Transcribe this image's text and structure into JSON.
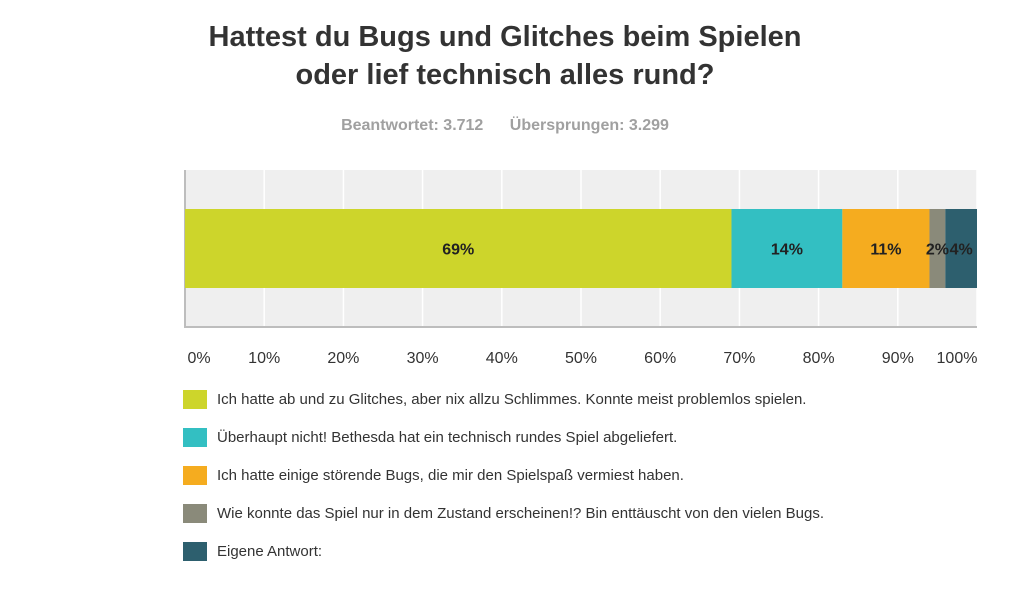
{
  "chart_data": {
    "type": "bar",
    "orientation": "horizontal-stacked",
    "title_lines": [
      "Hattest du Bugs und Glitches beim Spielen",
      "oder lief technisch alles rund?"
    ],
    "answered": "Beantwortet: 3.712",
    "skipped": "Übersprungen: 3.299",
    "xlim": [
      0,
      100
    ],
    "x_ticks": [
      "0%",
      "10%",
      "20%",
      "30%",
      "40%",
      "50%",
      "60%",
      "70%",
      "80%",
      "90%",
      "100%"
    ],
    "grid": true,
    "legend_position": "bottom-left",
    "series": [
      {
        "name": "Ich hatte ab und zu Glitches, aber nix allzu Schlimmes. Konnte meist problemlos spielen.",
        "value": 69,
        "label": "69%",
        "color": "#cdd52b"
      },
      {
        "name": "Überhaupt nicht! Bethesda hat ein technisch rundes Spiel abgeliefert.",
        "value": 14,
        "label": "14%",
        "color": "#33bfc2"
      },
      {
        "name": "Ich hatte einige störende Bugs, die mir den Spielspaß vermiest haben.",
        "value": 11,
        "label": "11%",
        "color": "#f5ac1f"
      },
      {
        "name": "Wie konnte das Spiel nur in dem Zustand erscheinen!? Bin enttäuscht von den vielen Bugs.",
        "value": 2,
        "label": "2%",
        "color": "#8a8a7a"
      },
      {
        "name": "Eigene Antwort:",
        "value": 4,
        "label": "4%",
        "color": "#2d5f6e"
      }
    ]
  }
}
